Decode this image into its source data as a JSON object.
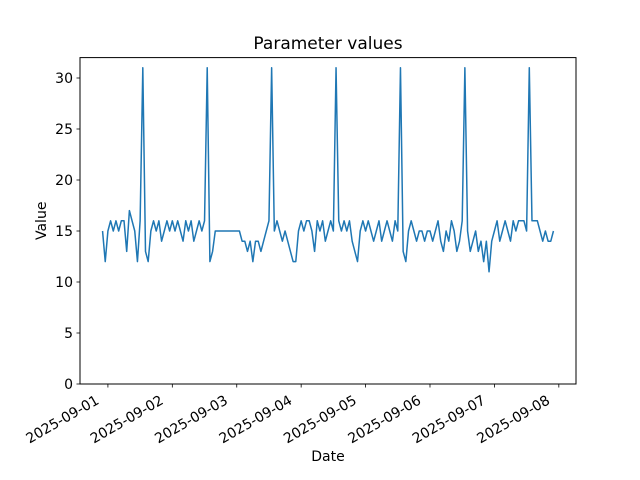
{
  "figure": {
    "background": "#ffffff",
    "axes_color": "#000000"
  },
  "chart_data": {
    "type": "line",
    "title": "Parameter values",
    "xlabel": "Date",
    "ylabel": "Value",
    "line_color": "#1f77b4",
    "grid": false,
    "legend_position": "none",
    "start": "2025-08-31 22:00",
    "interval_hours": 1,
    "x_tick_labels": [
      "2025-09-01",
      "2025-09-02",
      "2025-09-03",
      "2025-09-04",
      "2025-09-05",
      "2025-09-06",
      "2025-09-07",
      "2025-09-08"
    ],
    "y_ticks": [
      0,
      5,
      10,
      15,
      20,
      25,
      30
    ],
    "ylim": [
      0,
      32
    ],
    "values": [
      15,
      12,
      15,
      16,
      15,
      16,
      15,
      16,
      16,
      13,
      17,
      16,
      15,
      12,
      16,
      31,
      13,
      12,
      15,
      16,
      15,
      16,
      14,
      15,
      16,
      15,
      16,
      15,
      16,
      15,
      14,
      16,
      15,
      16,
      14,
      15,
      16,
      15,
      16,
      31,
      12,
      13,
      15,
      15,
      15,
      15,
      15,
      15,
      15,
      15,
      15,
      15,
      14,
      14,
      13,
      14,
      12,
      14,
      14,
      13,
      14,
      15,
      16,
      31,
      15,
      16,
      15,
      14,
      15,
      14,
      13,
      12,
      12,
      15,
      16,
      15,
      16,
      16,
      15,
      13,
      16,
      15,
      16,
      14,
      15,
      16,
      15,
      31,
      16,
      15,
      16,
      15,
      16,
      14,
      13,
      12,
      15,
      16,
      15,
      16,
      15,
      14,
      15,
      16,
      14,
      15,
      16,
      15,
      14,
      16,
      15,
      31,
      13,
      12,
      15,
      16,
      15,
      14,
      15,
      15,
      14,
      15,
      15,
      14,
      15,
      16,
      14,
      13,
      15,
      14,
      16,
      15,
      13,
      14,
      16,
      31,
      15,
      13,
      14,
      15,
      13,
      14,
      12,
      14,
      11,
      14,
      15,
      16,
      14,
      15,
      16,
      15,
      14,
      16,
      15,
      16,
      16,
      16,
      15,
      31,
      16,
      16,
      16,
      15,
      14,
      15,
      14,
      14,
      15
    ]
  }
}
